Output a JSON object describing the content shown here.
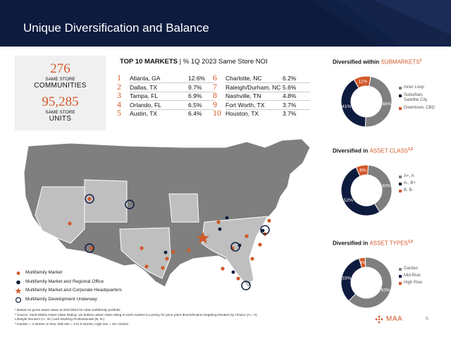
{
  "header": {
    "title": "Unique Diversification and Balance"
  },
  "stats": [
    {
      "value": "276",
      "line1": "SAME STORE",
      "line2": "COMMUNITIES"
    },
    {
      "value": "95,285",
      "line1": "SAME STORE",
      "line2": "UNITS"
    }
  ],
  "markets": {
    "title_bold": "TOP 10 MARKETS",
    "title_rest": " | % 1Q 2023 Same Store NOI",
    "items": [
      {
        "rank": "1",
        "name": "Atlanta, GA",
        "pct": "12.6%"
      },
      {
        "rank": "2",
        "name": "Dallas, TX",
        "pct": "9.7%"
      },
      {
        "rank": "3",
        "name": "Tampa, FL",
        "pct": "6.9%"
      },
      {
        "rank": "4",
        "name": "Orlando, FL",
        "pct": "6.5%"
      },
      {
        "rank": "5",
        "name": "Austin, TX",
        "pct": "6.4%"
      },
      {
        "rank": "6",
        "name": "Charlotte, NC",
        "pct": "6.2%"
      },
      {
        "rank": "7",
        "name": "Raleigh/Durham, NC",
        "pct": "5.6%"
      },
      {
        "rank": "8",
        "name": "Nashville, TN",
        "pct": "4.8%"
      },
      {
        "rank": "9",
        "name": "Fort Worth, TX",
        "pct": "3.7%"
      },
      {
        "rank": "10",
        "name": "Houston, TX",
        "pct": "3.7%"
      }
    ]
  },
  "legend": [
    {
      "icon": "orange-dot-icon",
      "label": "Multifamily Market"
    },
    {
      "icon": "navy-dot-icon",
      "label": "Multifamily Market and Regional Office"
    },
    {
      "icon": "star-icon",
      "label": "Multifamily Market and Corporate Headquarters"
    },
    {
      "icon": "ring-icon",
      "label": "Multifamily Development Underway"
    }
  ],
  "footnotes": [
    "¹ Based on gross asset value at 3/31/2023 for total multifamily portfolio",
    "² Source: Yardi Matrix Asset Class Rating; we believe asset class rating in each market is a proxy for price point diversification targeting Renters by Choice (A+, A),",
    "Lifestyle Renters (A-, B+) and Working Professionals (B, B-)",
    "³ Garden = 3 stories or less; Mid-rise = 4 to 9 stories; High rise = 10+ stories"
  ],
  "colors": {
    "navy": "#0d1b3e",
    "gray": "#7f7f7f",
    "orange": "#d2592a"
  },
  "donuts": [
    {
      "title_pre": "Diversified within ",
      "title_acc": "SUBMARKETS",
      "sup": "1",
      "chart_data": {
        "type": "pie",
        "categories": [
          "Inner Loop",
          "Suburban, Satellite City",
          "Downtown, CBD"
        ],
        "values": [
          48,
          41,
          11
        ],
        "labels": [
          "48%",
          "41%",
          "11%"
        ]
      },
      "legend": [
        "Inner Loop",
        "Suburban,\nSatellite City",
        "Downtown, CBD"
      ]
    },
    {
      "title_pre": "Diversified in ",
      "title_acc": "ASSET CLASS",
      "sup": "1,2",
      "chart_data": {
        "type": "pie",
        "categories": [
          "A+, A",
          "A-, B+",
          "B, B-"
        ],
        "values": [
          40,
          52,
          8
        ],
        "labels": [
          "40%",
          "52%",
          "8%"
        ]
      },
      "legend": [
        "A+, A",
        "A-, B+",
        "B, B-"
      ]
    },
    {
      "title_pre": "Diversified in ",
      "title_acc": "ASSET TYPES",
      "sup": "1,3",
      "chart_data": {
        "type": "pie",
        "categories": [
          "Garden",
          "Mid-Rise",
          "High Rise"
        ],
        "values": [
          63,
          33,
          4
        ],
        "labels": [
          "63%",
          "33%",
          "4%"
        ]
      },
      "legend": [
        "Garden",
        "Mid-Rise",
        "High Rise"
      ]
    }
  ],
  "logo": {
    "text": "MAA"
  },
  "page": {
    "number": "6"
  }
}
